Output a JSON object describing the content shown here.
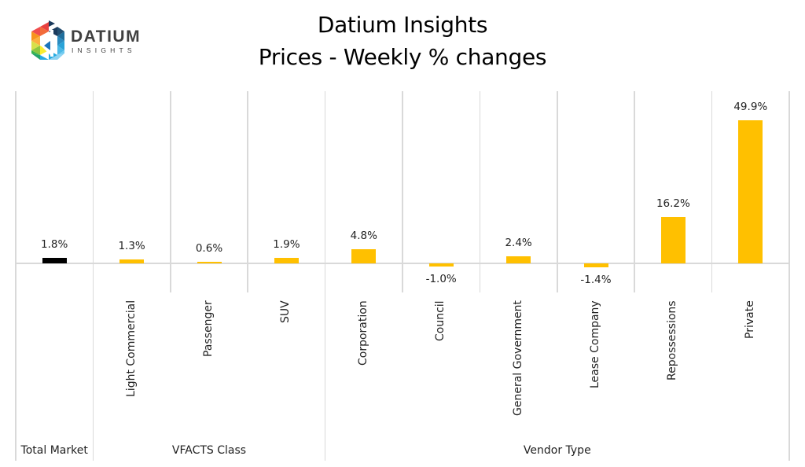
{
  "logo": {
    "word": "DATIUM",
    "sub": "INSIGHTS"
  },
  "header": {
    "title_line1": "Datium Insights",
    "title_line2": "Prices - Weekly % changes"
  },
  "colors": {
    "bar_total": "#000000",
    "bar_default": "#FFC000",
    "gridline": "#D9D9D9"
  },
  "chart_data": {
    "type": "bar",
    "title": "Datium Insights — Prices - Weekly % changes",
    "xlabel": "",
    "ylabel": "",
    "grid": true,
    "legend": null,
    "categories": [
      "Total Market",
      "Light Commercial",
      "Passenger",
      "SUV",
      "Corporation",
      "Council",
      "General Government",
      "Lease Company",
      "Repossessions",
      "Private"
    ],
    "groups": [
      {
        "name": "Total Market",
        "categories": [
          "Total Market"
        ]
      },
      {
        "name": "VFACTS Class",
        "categories": [
          "Light Commercial",
          "Passenger",
          "SUV"
        ]
      },
      {
        "name": "Vendor Type",
        "categories": [
          "Corporation",
          "Council",
          "General Government",
          "Lease Company",
          "Repossessions",
          "Private"
        ]
      }
    ],
    "values": [
      1.8,
      1.3,
      0.6,
      1.9,
      4.8,
      -1.0,
      2.4,
      -1.4,
      16.2,
      49.9
    ],
    "value_labels": [
      "1.8%",
      "1.3%",
      "0.6%",
      "1.9%",
      "4.8%",
      "-1.0%",
      "2.4%",
      "-1.4%",
      "16.2%",
      "49.9%"
    ],
    "ylim": [
      -10,
      60
    ]
  },
  "axis": {
    "category_labels": [
      "",
      "Light Commercial",
      "Passenger",
      "SUV",
      "Corporation",
      "Council",
      "General Government",
      "Lease Company",
      "Repossessions",
      "Private"
    ],
    "group_labels": [
      "Total Market",
      "VFACTS Class",
      "Vendor Type"
    ]
  }
}
